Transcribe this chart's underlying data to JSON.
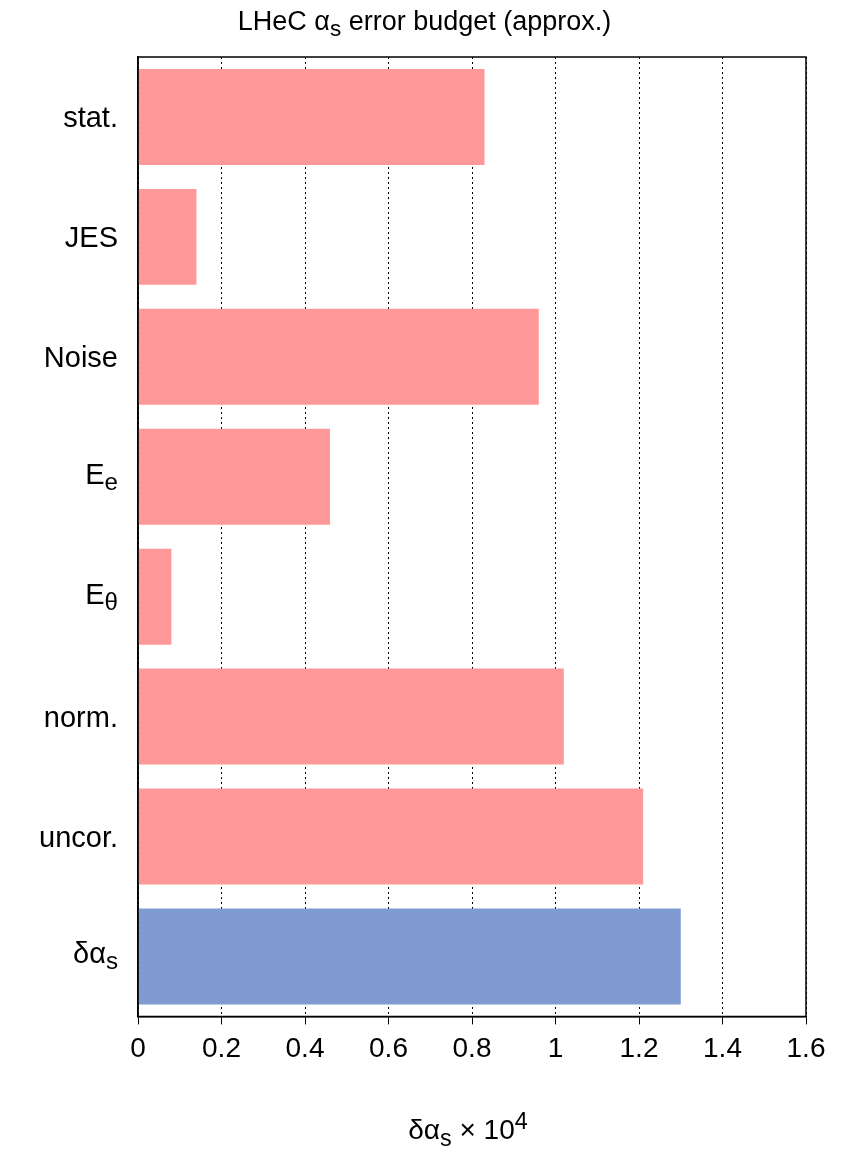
{
  "chart_data": {
    "type": "bar",
    "orientation": "horizontal",
    "title": "LHeC α$_{s}$ error budget (approx.)",
    "xlabel": "δα$_{s}$ × 10$^{4}$",
    "categories": [
      "stat.",
      "JES",
      "Noise",
      "E$_{e}$",
      "E$_{θ}$",
      "norm.",
      "uncor.",
      "δα$_{s}$"
    ],
    "values": [
      0.83,
      0.14,
      0.96,
      0.46,
      0.08,
      1.02,
      1.21,
      1.3
    ],
    "colors": [
      "#ff9999",
      "#ff9999",
      "#ff9999",
      "#ff9999",
      "#ff9999",
      "#ff9999",
      "#ff9999",
      "#7f9bd1"
    ],
    "xlim": [
      0,
      1.6
    ],
    "xticks": [
      0,
      0.2,
      0.4,
      0.6,
      0.8,
      1,
      1.2,
      1.4,
      1.6
    ],
    "grid": "x",
    "legend": false
  }
}
